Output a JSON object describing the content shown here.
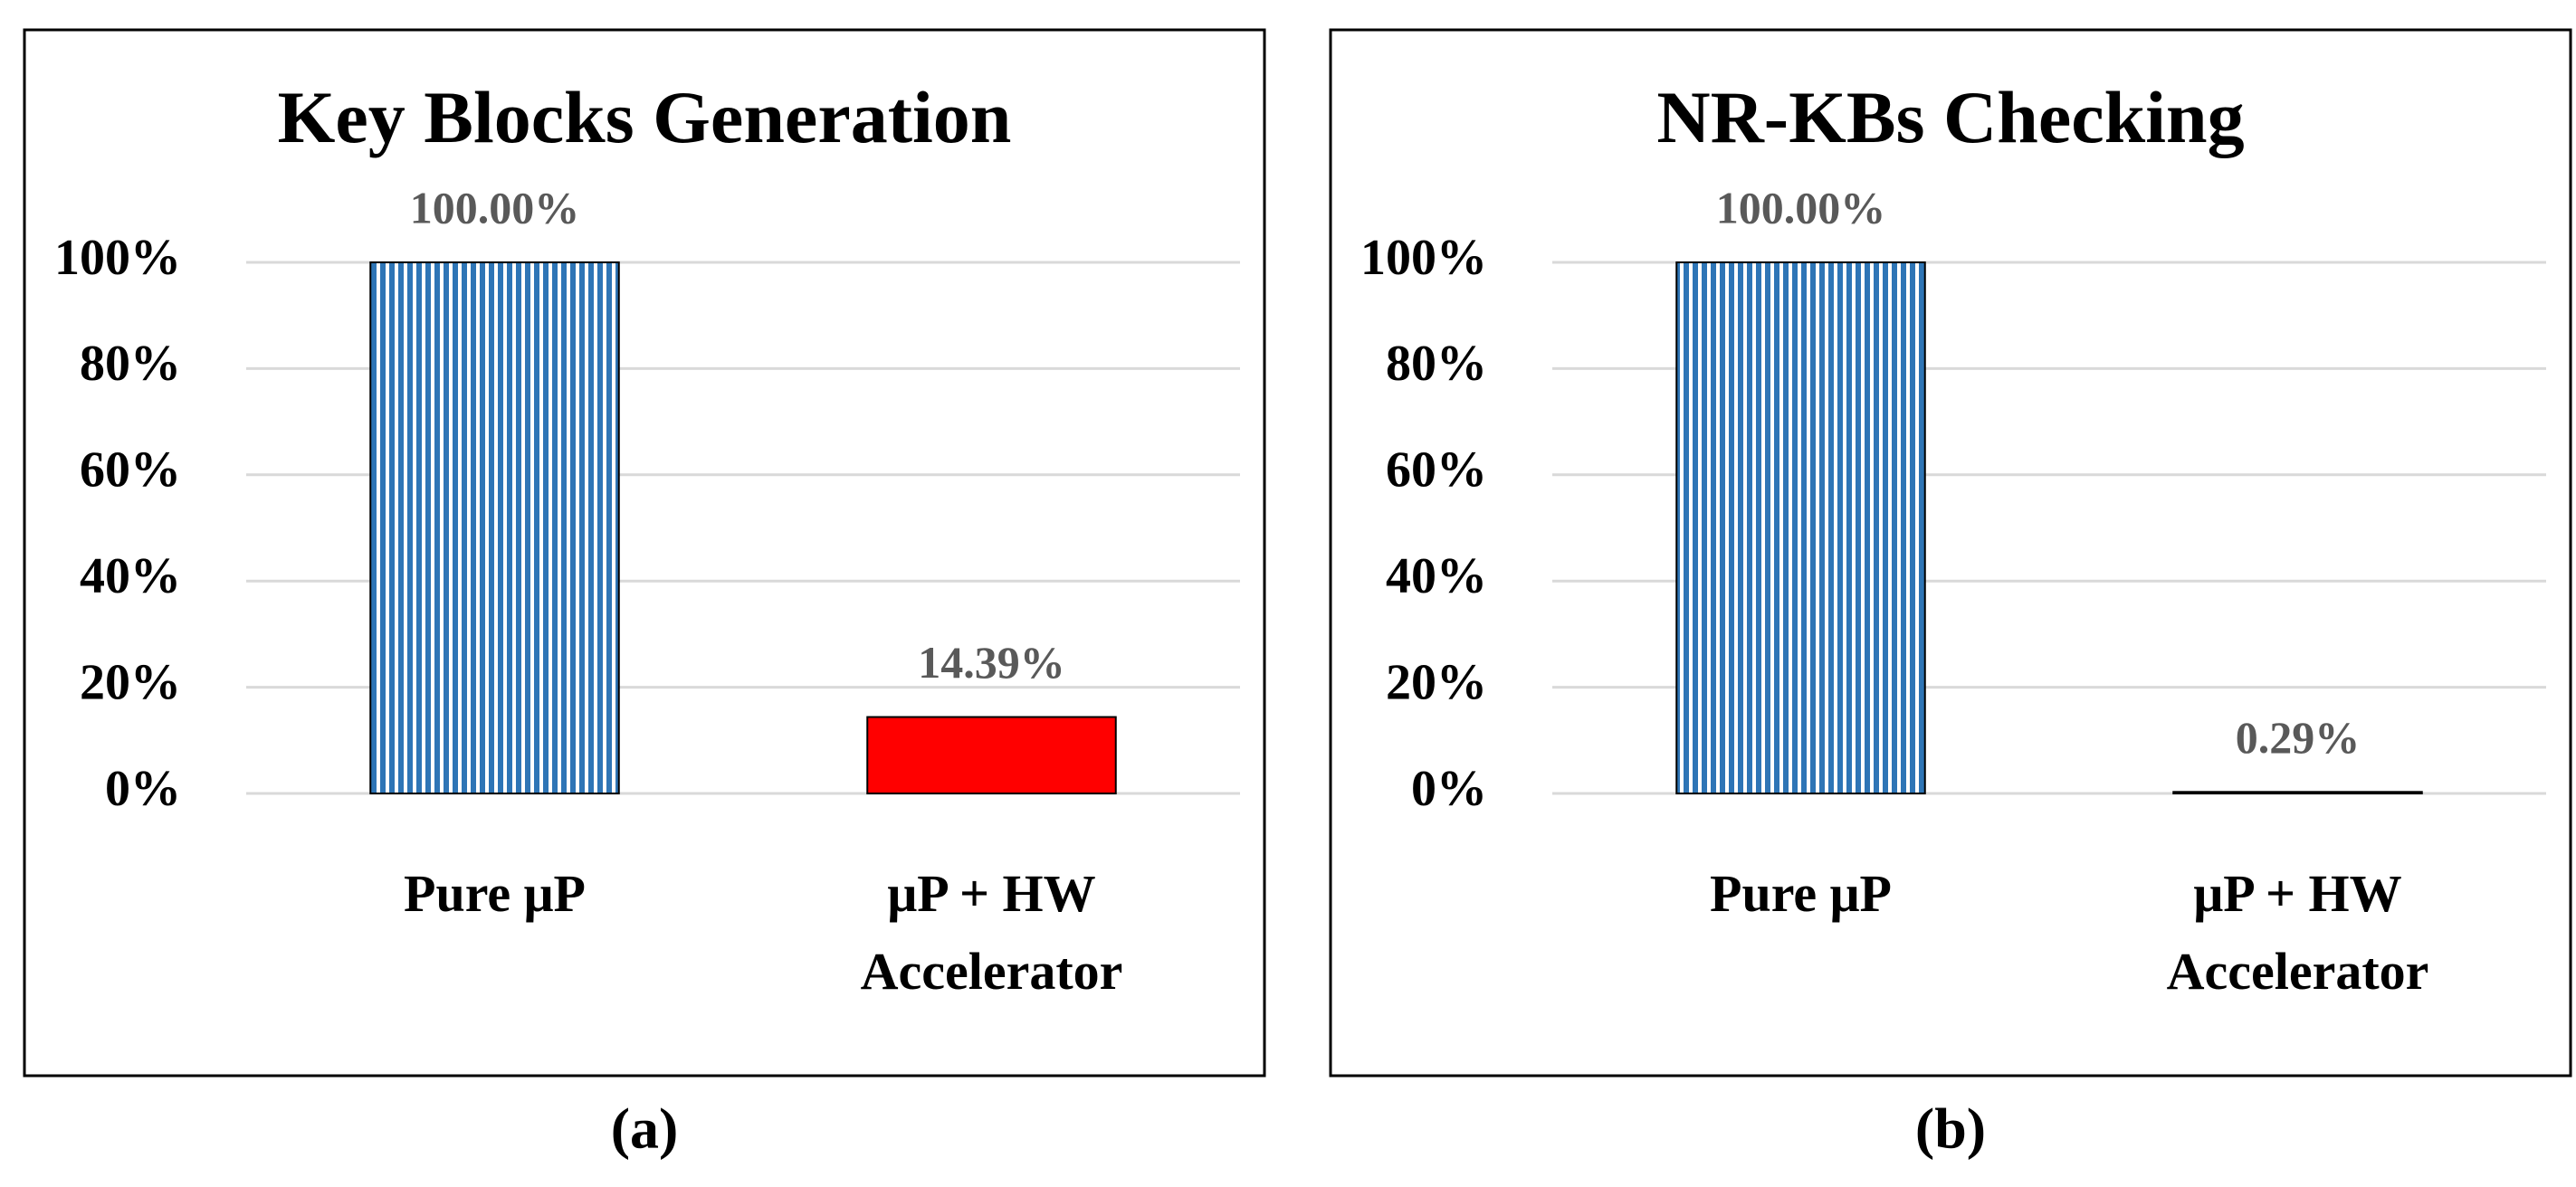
{
  "chart_data": [
    {
      "type": "bar",
      "title": "Key Blocks Generation",
      "label": "(a)",
      "categories": [
        "Pure μP",
        "μP + HW Accelerator"
      ],
      "values": [
        100,
        14.39
      ],
      "value_labels": [
        "100.00%",
        "14.39%"
      ],
      "colors": [
        "#2e75b6",
        "#ff0000"
      ],
      "patterns": [
        "stripes",
        "solid"
      ],
      "ylim": [
        0,
        100
      ],
      "yticks": [
        {
          "value": 0,
          "label": "0%"
        },
        {
          "value": 20,
          "label": "20%"
        },
        {
          "value": 40,
          "label": "40%"
        },
        {
          "value": 60,
          "label": "60%"
        },
        {
          "value": 80,
          "label": "80%"
        },
        {
          "value": 100,
          "label": "100%"
        }
      ],
      "grid": true
    },
    {
      "type": "bar",
      "title": "NR-KBs Checking",
      "label": "(b)",
      "categories": [
        "Pure μP",
        "μP + HW Accelerator"
      ],
      "values": [
        100,
        0.29
      ],
      "value_labels": [
        "100.00%",
        "0.29%"
      ],
      "colors": [
        "#2e75b6",
        "#ff0000"
      ],
      "patterns": [
        "stripes",
        "solid"
      ],
      "ylim": [
        0,
        100
      ],
      "yticks": [
        {
          "value": 0,
          "label": "0%"
        },
        {
          "value": 20,
          "label": "20%"
        },
        {
          "value": 40,
          "label": "40%"
        },
        {
          "value": 60,
          "label": "60%"
        },
        {
          "value": 80,
          "label": "80%"
        },
        {
          "value": 100,
          "label": "100%"
        }
      ],
      "grid": true
    }
  ]
}
